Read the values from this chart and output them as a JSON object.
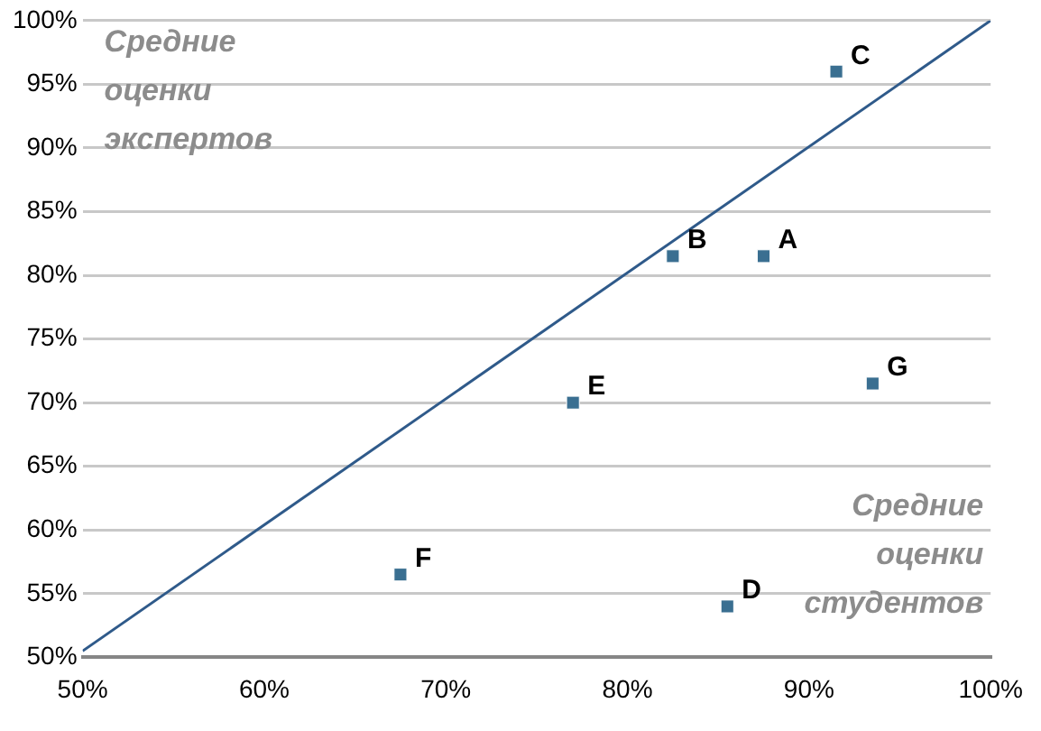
{
  "chart_data": {
    "type": "scatter",
    "xlim": [
      50,
      100
    ],
    "xticks": [
      {
        "value": 50,
        "label": "50%"
      },
      {
        "value": 60,
        "label": "60%"
      },
      {
        "value": 70,
        "label": "70%"
      },
      {
        "value": 80,
        "label": "80%"
      },
      {
        "value": 90,
        "label": "90%"
      },
      {
        "value": 100,
        "label": "100%"
      }
    ],
    "ylim": [
      50,
      100
    ],
    "yticks": [
      {
        "value": 50,
        "label": "50%"
      },
      {
        "value": 55,
        "label": "55%"
      },
      {
        "value": 60,
        "label": "60%"
      },
      {
        "value": 65,
        "label": "65%"
      },
      {
        "value": 70,
        "label": "70%"
      },
      {
        "value": 75,
        "label": "75%"
      },
      {
        "value": 80,
        "label": "80%"
      },
      {
        "value": 85,
        "label": "85%"
      },
      {
        "value": 90,
        "label": "90%"
      },
      {
        "value": 95,
        "label": "95%"
      },
      {
        "value": 100,
        "label": "100%"
      }
    ],
    "grid": "y",
    "legend": false,
    "series": [
      {
        "type": "scatter",
        "color": "#3a6f91",
        "marker": "square",
        "x": [
          87.5,
          82.5,
          91.5,
          85.5,
          77,
          67.5,
          93.5
        ],
        "values": [
          81.5,
          81.5,
          96,
          54,
          70,
          56.5,
          71.5
        ]
      },
      {
        "type": "line",
        "color": "#2f5a8a",
        "marker": "none",
        "line_style": "solid",
        "x": [
          50,
          100
        ],
        "values": [
          50.5,
          100
        ]
      }
    ],
    "annotations": [
      "Средние\nоценки\nэкспертов",
      "Средние\nоценки\nстудентов",
      {
        "text": "A",
        "x": 87.5,
        "y": 81.5
      },
      {
        "text": "B",
        "x": 82.5,
        "y": 81.5
      },
      {
        "text": "C",
        "x": 91.5,
        "y": 96
      },
      {
        "text": "D",
        "x": 85.5,
        "y": 54
      },
      {
        "text": "E",
        "x": 77,
        "y": 70
      },
      {
        "text": "F",
        "x": 67.5,
        "y": 56.5
      },
      {
        "text": "G",
        "x": 93.5,
        "y": 71.5
      }
    ]
  }
}
